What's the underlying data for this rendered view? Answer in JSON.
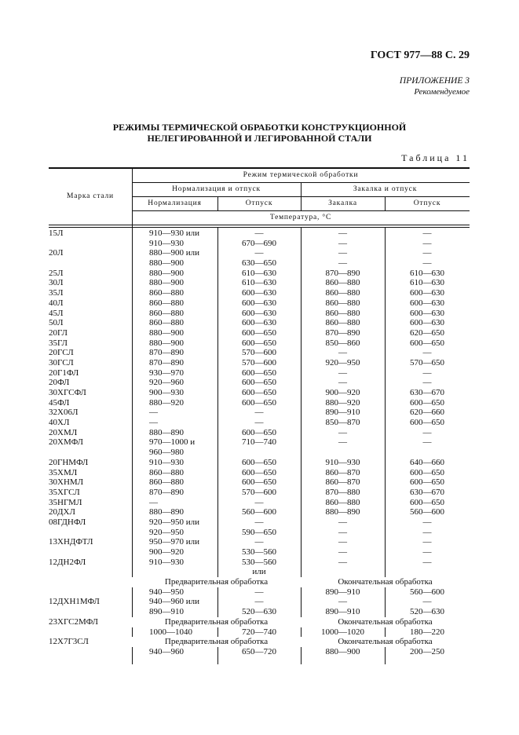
{
  "header": {
    "doc_ref": "ГОСТ 977—88 С. 29",
    "appendix": "ПРИЛОЖЕНИЕ 3",
    "recommended": "Рекомендуемое"
  },
  "title_lines": [
    "РЕЖИМЫ ТЕРМИЧЕСКОЙ ОБРАБОТКИ КОНСТРУКЦИОННОЙ",
    "НЕЛЕГИРОВАННОЙ И ЛЕГИРОВАННОЙ СТАЛИ"
  ],
  "table_label": "Таблица 11",
  "table": {
    "headers": {
      "grade": "Марка стали",
      "mode": "Режим термической обработки",
      "group1": "Нормализация и отпуск",
      "group2": "Закалка и отпуск",
      "normalization": "Нормализация",
      "tempering1": "Отпуск",
      "quenching": "Закалка",
      "tempering2": "Отпуск",
      "temperature": "Температура, °С"
    },
    "rows": [
      {
        "cells": [
          "15Л",
          "910—930 или",
          "—",
          "—",
          "—"
        ]
      },
      {
        "cells": [
          "",
          "910—930",
          "670—690",
          "—",
          "—"
        ]
      },
      {
        "cells": [
          "20Л",
          "880—900 или",
          "—",
          "—",
          "—"
        ]
      },
      {
        "cells": [
          "",
          "880—900",
          "630—650",
          "—",
          "—"
        ]
      },
      {
        "cells": [
          "25Л",
          "880—900",
          "610—630",
          "870—890",
          "610—630"
        ]
      },
      {
        "cells": [
          "30Л",
          "880—900",
          "610—630",
          "860—880",
          "610—630"
        ]
      },
      {
        "cells": [
          "35Л",
          "860—880",
          "600—630",
          "860—880",
          "600—630"
        ]
      },
      {
        "cells": [
          "40Л",
          "860—880",
          "600—630",
          "860—880",
          "600—630"
        ]
      },
      {
        "cells": [
          "45Л",
          "860—880",
          "600—630",
          "860—880",
          "600—630"
        ]
      },
      {
        "cells": [
          "50Л",
          "860—880",
          "600—630",
          "860—880",
          "600—630"
        ]
      },
      {
        "cells": [
          "20ГЛ",
          "880—900",
          "600—650",
          "870—890",
          "620—650"
        ]
      },
      {
        "cells": [
          "35ГЛ",
          "880—900",
          "600—650",
          "850—860",
          "600—650"
        ]
      },
      {
        "cells": [
          "20ГСЛ",
          "870—890",
          "570—600",
          "—",
          "—"
        ]
      },
      {
        "cells": [
          "30ГСЛ",
          "870—890",
          "570—600",
          "920—950",
          "570—650"
        ]
      },
      {
        "cells": [
          "20Г1ФЛ",
          "930—970",
          "600—650",
          "—",
          "—"
        ]
      },
      {
        "cells": [
          "20ФЛ",
          "920—960",
          "600—650",
          "—",
          "—"
        ]
      },
      {
        "cells": [
          "30ХГСФЛ",
          "900—930",
          "600—650",
          "900—920",
          "630—670"
        ]
      },
      {
        "cells": [
          "45ФЛ",
          "880—920",
          "600—650",
          "880—920",
          "600—650"
        ]
      },
      {
        "cells": [
          "32Х06Л",
          "—",
          "—",
          "890—910",
          "620—660"
        ]
      },
      {
        "cells": [
          "40ХЛ",
          "—",
          "—",
          "850—870",
          "600—650"
        ]
      },
      {
        "cells": [
          "20ХМЛ",
          "880—890",
          "600—650",
          "—",
          "—"
        ]
      },
      {
        "cells": [
          "20ХМФЛ",
          "970—1000 и",
          "710—740",
          "—",
          "—"
        ]
      },
      {
        "cells": [
          "",
          "960—980",
          "",
          "",
          ""
        ]
      },
      {
        "cells": [
          "20ГНМФЛ",
          "910—930",
          "600—650",
          "910—930",
          "640—660"
        ]
      },
      {
        "cells": [
          "35ХМЛ",
          "860—880",
          "600—650",
          "860—870",
          "600—650"
        ]
      },
      {
        "cells": [
          "30ХНМЛ",
          "860—880",
          "600—650",
          "860—870",
          "600—650"
        ]
      },
      {
        "cells": [
          "35ХГСЛ",
          "870—890",
          "570—600",
          "870—880",
          "630—670"
        ]
      },
      {
        "cells": [
          "35НГМЛ",
          "—",
          "—",
          "860—880",
          "600—650"
        ]
      },
      {
        "cells": [
          "20ДХЛ",
          "880—890",
          "560—600",
          "880—890",
          "560—600"
        ]
      },
      {
        "cells": [
          "08ГДНФЛ",
          "920—950 или",
          "—",
          "—",
          "—"
        ]
      },
      {
        "cells": [
          "",
          "920—950",
          "590—650",
          "—",
          "—"
        ]
      },
      {
        "cells": [
          "13ХНДФТЛ",
          "950—970 или",
          "—",
          "—",
          "—"
        ]
      },
      {
        "cells": [
          "",
          "900—920",
          "530—560",
          "—",
          "—"
        ]
      },
      {
        "cells": [
          "12ДН2ФЛ",
          "910—930",
          "530—560",
          "—",
          "—"
        ]
      },
      {
        "cells": [
          "",
          "",
          "или",
          "",
          ""
        ]
      },
      {
        "span": [
          "",
          "Предварительная обработка",
          "Окончательная обработка"
        ]
      },
      {
        "cells": [
          "",
          "940—950",
          "—",
          "890—910",
          "560—600"
        ]
      },
      {
        "cells": [
          "12ДХН1МФЛ",
          "940—960 или",
          "—",
          "—",
          "—"
        ]
      },
      {
        "cells": [
          "",
          "890—910",
          "520—630",
          "890—910",
          "520—630"
        ]
      },
      {
        "span": [
          "23ХГС2МФЛ",
          "Предварительная обработка",
          "Окончательная обработка"
        ]
      },
      {
        "cells": [
          "",
          "1000—1040",
          "720—740",
          "1000—1020",
          "180—220"
        ]
      },
      {
        "span": [
          "12Х7Г3СЛ",
          "Предварительная обработка",
          "Окончательная обработка"
        ]
      },
      {
        "cells": [
          "",
          "940—960",
          "650—720",
          "880—900",
          "200—250"
        ]
      }
    ]
  }
}
